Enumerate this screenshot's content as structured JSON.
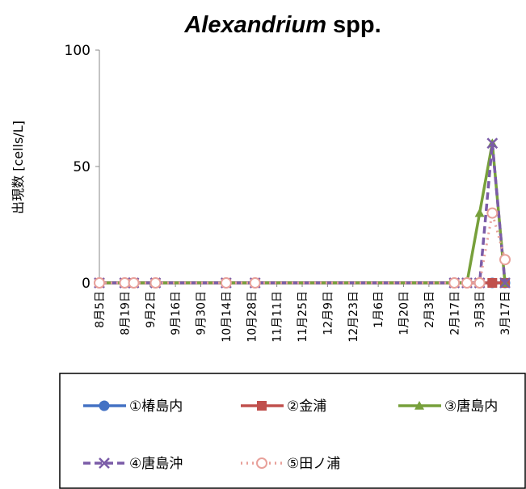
{
  "chart_data": {
    "type": "line",
    "title_italic": "Alexandrium",
    "title_rest": " spp.",
    "ylabel": "出現数 [cells/L]",
    "xlabel": "",
    "ylim": [
      0,
      100
    ],
    "yticks": [
      "0",
      "50",
      "100"
    ],
    "categories": [
      "8月5日",
      "8月19日",
      "9月2日",
      "9月16日",
      "9月30日",
      "10月14日",
      "10月28日",
      "11月11日",
      "11月25日",
      "12月9日",
      "12月23日",
      "1月6日",
      "1月20日",
      "2月3日",
      "2月17日",
      "3月3日",
      "3月17日"
    ],
    "category_dates": [
      "08-05",
      "08-19",
      "09-02",
      "09-16",
      "09-30",
      "10-14",
      "10-28",
      "11-11",
      "11-25",
      "12-09",
      "12-23",
      "01-06",
      "01-20",
      "02-03",
      "02-17",
      "03-03",
      "03-17"
    ],
    "x": [
      "08-05",
      "08-19",
      "08-24",
      "09-05",
      "10-14",
      "10-30",
      "02-17",
      "02-24",
      "03-03",
      "03-10",
      "03-17"
    ],
    "series": [
      {
        "name": "①椿島内",
        "color": "#4472C4",
        "marker": "circle",
        "dash": "",
        "values": [
          0,
          0,
          0,
          0,
          0,
          0,
          0,
          0,
          0,
          0,
          0
        ]
      },
      {
        "name": "②金浦",
        "color": "#C0504D",
        "marker": "square",
        "dash": "",
        "values": [
          0,
          0,
          0,
          0,
          0,
          0,
          0,
          0,
          0,
          0,
          0
        ]
      },
      {
        "name": "③唐島内",
        "color": "#77A03B",
        "marker": "triangle",
        "dash": "",
        "values": [
          0,
          0,
          0,
          0,
          0,
          0,
          0,
          0,
          30,
          60,
          0
        ]
      },
      {
        "name": "④唐島沖",
        "color": "#7B5CA8",
        "marker": "x",
        "dash": "9,5",
        "values": [
          0,
          0,
          0,
          0,
          0,
          0,
          0,
          0,
          0,
          60,
          0
        ]
      },
      {
        "name": "⑤田ノ浦",
        "color": "#E8A09A",
        "marker": "open-circle",
        "dash": "2,5",
        "values": [
          0,
          0,
          0,
          0,
          0,
          0,
          0,
          0,
          0,
          30,
          10
        ]
      }
    ],
    "legend_position": "bottom",
    "grid": false
  }
}
